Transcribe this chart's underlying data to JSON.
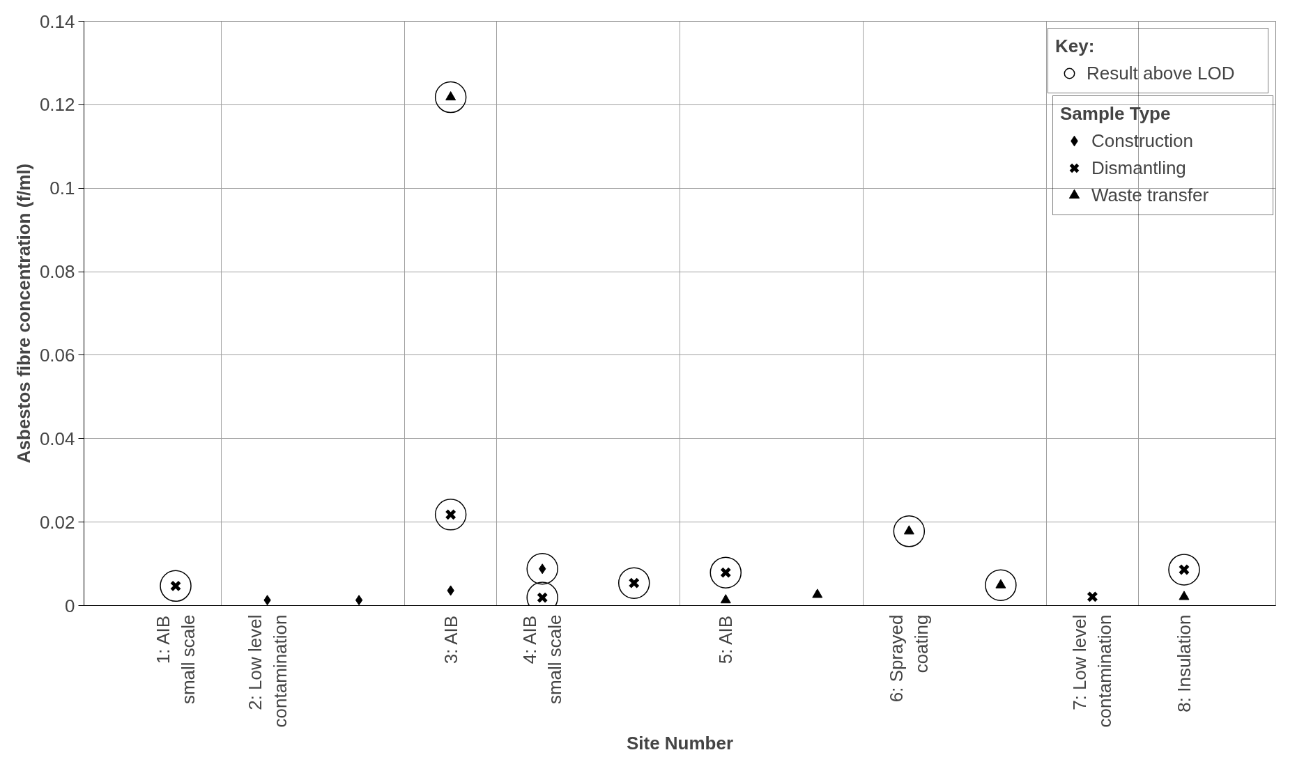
{
  "chart_data": {
    "type": "scatter",
    "xlabel": "Site Number",
    "ylabel": "Asbestos fibre concentration (f/ml)",
    "legend_title": "Key:",
    "annotations": [
      "Sample Type"
    ],
    "ylim": [
      0,
      0.14
    ],
    "yticks": [
      0,
      0.02,
      0.04,
      0.06,
      0.08,
      0.1,
      0.12,
      0.14
    ],
    "categories": [
      "1: AIB\nsmall scale",
      "2: Low level\ncontamination",
      null,
      "3: AIB",
      "4: AIB\nsmall scale",
      null,
      "5: AIB",
      null,
      "6: Sprayed\ncoating",
      null,
      "7: Low level\ncontamination",
      "8: Insulation"
    ],
    "grid": true,
    "legend": "top right",
    "series": [
      {
        "name": "Result above LOD",
        "color": "#000000",
        "marker": "circle",
        "values": [
          0.0047,
          null,
          null,
          0.1218,
          0.0088,
          0.0054,
          0.0079,
          null,
          0.0178,
          0.0049,
          null,
          0.0086
        ]
      },
      {
        "name": "Construction",
        "color": "#000000",
        "marker": "diamond",
        "values": [
          null,
          0.0013,
          0.0013,
          0.0036,
          0.0088,
          null,
          null,
          null,
          null,
          null,
          null,
          null
        ]
      },
      {
        "name": "Dismantling",
        "color": "#000000",
        "marker": "cross",
        "values": [
          0.0047,
          null,
          null,
          0.0218,
          0.0019,
          0.0054,
          0.0079,
          null,
          null,
          null,
          0.0021,
          0.0086
        ]
      },
      {
        "name": "Waste transfer",
        "color": "#000000",
        "marker": "triangle",
        "values": [
          null,
          null,
          null,
          0.1218,
          null,
          null,
          0.0013,
          0.0026,
          0.0178,
          0.0049,
          null,
          0.0021
        ]
      },
      {
        "color": "#000000",
        "marker": "circle",
        "values": [
          null,
          null,
          null,
          0.0218,
          0.0019,
          null,
          null,
          null,
          null,
          null,
          null,
          null
        ]
      }
    ]
  }
}
